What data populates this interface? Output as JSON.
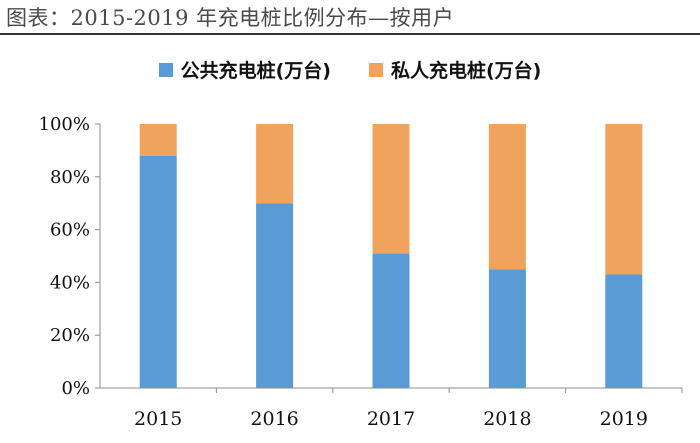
{
  "title": "图表：2015-2019 年充电桩比例分布—按用户",
  "chart_data": {
    "type": "bar",
    "stacked": true,
    "categories": [
      "2015",
      "2016",
      "2017",
      "2018",
      "2019"
    ],
    "series": [
      {
        "name": "公共充电桩(万台)",
        "color": "#5b9bd5",
        "values": [
          88,
          70,
          51,
          45,
          43
        ]
      },
      {
        "name": "私人充电桩(万台)",
        "color": "#f0a35c",
        "values": [
          12,
          30,
          49,
          55,
          57
        ]
      }
    ],
    "yticks": [
      "0%",
      "20%",
      "40%",
      "60%",
      "80%",
      "100%"
    ],
    "ylim": [
      0,
      100
    ],
    "legend_position": "top"
  }
}
